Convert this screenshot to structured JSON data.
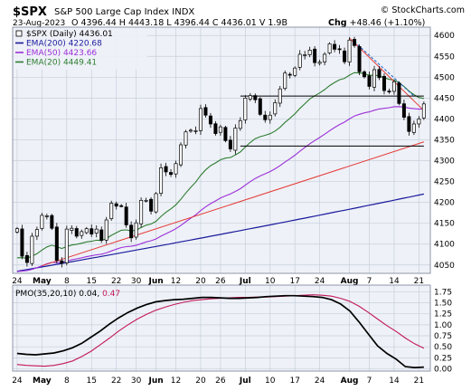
{
  "header": {
    "symbol": "$SPX",
    "name": "S&P 500 Large Cap Index",
    "exchange": "INDX",
    "date": "23-Aug-2023",
    "ohlc": "O 4396.44  H 4443.18  L 4396.44  C 4436.01  V 1.9B",
    "change_label": "Chg",
    "change_value": "+48.46 (+1.10%)",
    "credit": "© StockCharts.com"
  },
  "legend": [
    {
      "label": "$SPX (Daily) 4436.01",
      "color": "#000000"
    },
    {
      "label": "EMA(200) 4220.68",
      "color": "#1a1a9c"
    },
    {
      "label": "EMA(50) 4423.66",
      "color": "#9b30d9"
    },
    {
      "label": "EMA(20) 4449.41",
      "color": "#2e7d32"
    }
  ],
  "pmo_legend": {
    "label": "PMO(35,20,10)",
    "value": "0.04",
    "signal_value": "0.47",
    "value_color": "#000000",
    "signal_color": "#c2185b"
  },
  "colors": {
    "panel_bg": "#eef1f7",
    "grid": "#c8cfdc",
    "up": "#ffffff",
    "down": "#000000",
    "ema200": "#1a1a9c",
    "ema50": "#9b30d9",
    "ema20": "#2e7d32",
    "trend_red": "#e53935",
    "pmo": "#000000",
    "pmo_signal": "#c2185b"
  },
  "chart_data": [
    {
      "type": "candlestick",
      "y_axis": {
        "min": 4030,
        "max": 4620,
        "ticks": [
          4050,
          4100,
          4150,
          4200,
          4250,
          4300,
          4350,
          4400,
          4450,
          4500,
          4550,
          4600
        ]
      },
      "x_axis": {
        "labels": [
          {
            "i": 0,
            "text": "24",
            "bold": false
          },
          {
            "i": 5,
            "text": "May",
            "bold": true
          },
          {
            "i": 10,
            "text": "8",
            "bold": false
          },
          {
            "i": 15,
            "text": "15",
            "bold": false
          },
          {
            "i": 20,
            "text": "22",
            "bold": false
          },
          {
            "i": 24,
            "text": "30",
            "bold": false
          },
          {
            "i": 28,
            "text": "Jun",
            "bold": true
          },
          {
            "i": 32,
            "text": "12",
            "bold": false
          },
          {
            "i": 37,
            "text": "20",
            "bold": false
          },
          {
            "i": 41,
            "text": "26",
            "bold": false
          },
          {
            "i": 46,
            "text": "Jul",
            "bold": true
          },
          {
            "i": 51,
            "text": "10",
            "bold": false
          },
          {
            "i": 56,
            "text": "17",
            "bold": false
          },
          {
            "i": 61,
            "text": "24",
            "bold": false
          },
          {
            "i": 67,
            "text": "Aug",
            "bold": true
          },
          {
            "i": 71,
            "text": "7",
            "bold": false
          },
          {
            "i": 76,
            "text": "14",
            "bold": false
          },
          {
            "i": 81,
            "text": "21",
            "bold": false
          }
        ]
      },
      "closes": [
        4137,
        4071,
        4056,
        4119,
        4135,
        4169,
        4168,
        4138,
        4061,
        4054,
        4136,
        4138,
        4119,
        4130,
        4137,
        4124,
        4136,
        4109,
        4158,
        4198,
        4191,
        4192,
        4146,
        4115,
        4151,
        4205,
        4205,
        4179,
        4221,
        4283,
        4273,
        4267,
        4293,
        4338,
        4369,
        4373,
        4372,
        4425,
        4409,
        4388,
        4365,
        4381,
        4348,
        4328,
        4378,
        4396,
        4450,
        4456,
        4446,
        4411,
        4398,
        4409,
        4439,
        4472,
        4510,
        4505,
        4522,
        4555,
        4554,
        4565,
        4535,
        4536,
        4555,
        4580,
        4567,
        4566,
        4537,
        4589,
        4576,
        4513,
        4501,
        4478,
        4518,
        4499,
        4468,
        4465,
        4489,
        4437,
        4404,
        4370,
        4388,
        4400,
        4436
      ],
      "ema200": {
        "start": 4035,
        "end": 4220
      },
      "ema50": {
        "start": 4030,
        "end": 4424
      },
      "ema20": {
        "start": 4060,
        "end": 4449
      },
      "trendlines": [
        {
          "color": "red",
          "points": [
            [
              5,
              4048
            ],
            [
              82,
              4345
            ]
          ]
        },
        {
          "color": "red",
          "points": [
            [
              67,
              4594
            ],
            [
              82,
              4420
            ]
          ]
        },
        {
          "color": "black",
          "points": [
            [
              45,
              4455
            ],
            [
              82,
              4455
            ]
          ]
        },
        {
          "color": "black",
          "points": [
            [
              45,
              4335
            ],
            [
              82,
              4335
            ]
          ]
        },
        {
          "color": "blue-dashed",
          "points": [
            [
              68,
              4585
            ],
            [
              80,
              4455
            ]
          ]
        }
      ]
    },
    {
      "type": "line",
      "name": "PMO(35,20,10)",
      "y_axis": {
        "min": -0.05,
        "max": 1.9,
        "ticks": [
          "0.00",
          "0.25",
          "0.50",
          "0.75",
          "1.00",
          "1.25",
          "1.50",
          "1.75"
        ]
      },
      "series": [
        {
          "label": "PMO",
          "values": [
            0.35,
            0.33,
            0.32,
            0.34,
            0.36,
            0.41,
            0.48,
            0.58,
            0.72,
            0.86,
            1.02,
            1.16,
            1.28,
            1.38,
            1.46,
            1.52,
            1.55,
            1.57,
            1.58,
            1.6,
            1.62,
            1.62,
            1.61,
            1.6,
            1.6,
            1.61,
            1.62,
            1.64,
            1.65,
            1.66,
            1.66,
            1.65,
            1.64,
            1.62,
            1.57,
            1.47,
            1.31,
            1.06,
            0.79,
            0.52,
            0.35,
            0.22,
            0.05,
            0.03,
            0.04
          ]
        },
        {
          "label": "Signal",
          "values": [
            0.1,
            0.08,
            0.07,
            0.06,
            0.08,
            0.12,
            0.18,
            0.28,
            0.4,
            0.55,
            0.7,
            0.86,
            1.0,
            1.13,
            1.24,
            1.33,
            1.4,
            1.46,
            1.51,
            1.55,
            1.57,
            1.59,
            1.6,
            1.61,
            1.62,
            1.62,
            1.63,
            1.63,
            1.64,
            1.65,
            1.66,
            1.67,
            1.68,
            1.67,
            1.65,
            1.6,
            1.53,
            1.42,
            1.28,
            1.13,
            0.98,
            0.85,
            0.7,
            0.57,
            0.47
          ]
        }
      ]
    }
  ]
}
